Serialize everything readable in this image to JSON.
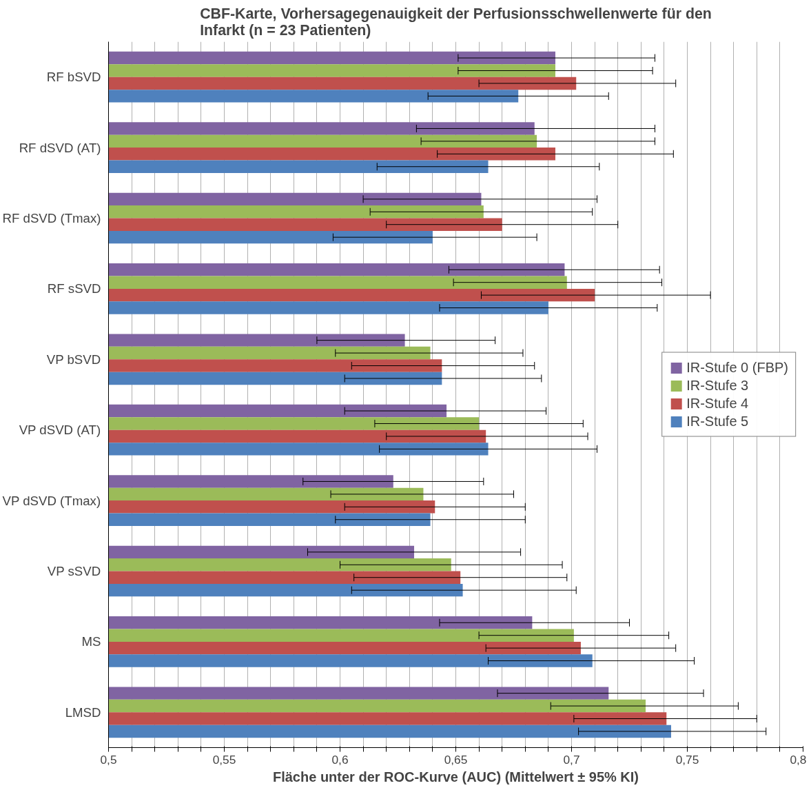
{
  "chart_data": {
    "type": "bar",
    "orientation": "horizontal",
    "title": "CBF-Karte, Vorhersagegenauigkeit der Perfusionsschwellenwerte für den\nInfarkt (n = 23 Patienten)",
    "xlabel": "Fläche unter der ROC-Kurve (AUC) (Mittelwert ± 95% KI)",
    "categories": [
      "RF bSVD",
      "RF dSVD (AT)",
      "RF dSVD (Tmax)",
      "RF sSVD",
      "VP bSVD",
      "VP dSVD (AT)",
      "VP dSVD (Tmax)",
      "VP sSVD",
      "MS",
      "LMSD"
    ],
    "series": [
      {
        "name": "IR-Stufe 0 (FBP)",
        "color": "#8064a2",
        "values": [
          0.693,
          0.684,
          0.661,
          0.697,
          0.628,
          0.646,
          0.623,
          0.632,
          0.683,
          0.716
        ],
        "errors": [
          [
            0.651,
            0.736
          ],
          [
            0.633,
            0.736
          ],
          [
            0.61,
            0.711
          ],
          [
            0.647,
            0.738
          ],
          [
            0.59,
            0.667
          ],
          [
            0.602,
            0.689
          ],
          [
            0.584,
            0.662
          ],
          [
            0.586,
            0.678
          ],
          [
            0.643,
            0.725
          ],
          [
            0.668,
            0.757
          ]
        ]
      },
      {
        "name": "IR-Stufe 3",
        "color": "#9bbb59",
        "values": [
          0.693,
          0.685,
          0.662,
          0.698,
          0.639,
          0.66,
          0.636,
          0.648,
          0.701,
          0.732
        ],
        "errors": [
          [
            0.651,
            0.735
          ],
          [
            0.635,
            0.736
          ],
          [
            0.613,
            0.709
          ],
          [
            0.649,
            0.739
          ],
          [
            0.598,
            0.679
          ],
          [
            0.615,
            0.705
          ],
          [
            0.596,
            0.675
          ],
          [
            0.6,
            0.696
          ],
          [
            0.66,
            0.742
          ],
          [
            0.691,
            0.772
          ]
        ]
      },
      {
        "name": "IR-Stufe 4",
        "color": "#c0504d",
        "values": [
          0.702,
          0.693,
          0.67,
          0.71,
          0.644,
          0.663,
          0.641,
          0.652,
          0.704,
          0.741
        ],
        "errors": [
          [
            0.66,
            0.745
          ],
          [
            0.642,
            0.744
          ],
          [
            0.62,
            0.72
          ],
          [
            0.661,
            0.76
          ],
          [
            0.605,
            0.684
          ],
          [
            0.62,
            0.707
          ],
          [
            0.602,
            0.68
          ],
          [
            0.606,
            0.698
          ],
          [
            0.663,
            0.745
          ],
          [
            0.701,
            0.78
          ]
        ]
      },
      {
        "name": "IR-Stufe 5",
        "color": "#4f81bd",
        "values": [
          0.677,
          0.664,
          0.64,
          0.69,
          0.644,
          0.664,
          0.639,
          0.653,
          0.709,
          0.743
        ],
        "errors": [
          [
            0.638,
            0.716
          ],
          [
            0.616,
            0.712
          ],
          [
            0.597,
            0.685
          ],
          [
            0.643,
            0.737
          ],
          [
            0.602,
            0.687
          ],
          [
            0.617,
            0.711
          ],
          [
            0.598,
            0.68
          ],
          [
            0.605,
            0.702
          ],
          [
            0.664,
            0.753
          ],
          [
            0.703,
            0.784
          ]
        ]
      }
    ],
    "xlim": [
      0.5,
      0.8
    ],
    "xticks": [
      {
        "value": 0.5,
        "label": "0,5"
      },
      {
        "value": 0.51,
        "label": null
      },
      {
        "value": 0.52,
        "label": null
      },
      {
        "value": 0.53,
        "label": null
      },
      {
        "value": 0.54,
        "label": null
      },
      {
        "value": 0.55,
        "label": "0,55"
      },
      {
        "value": 0.56,
        "label": null
      },
      {
        "value": 0.57,
        "label": null
      },
      {
        "value": 0.58,
        "label": null
      },
      {
        "value": 0.59,
        "label": null
      },
      {
        "value": 0.6,
        "label": "0,6"
      },
      {
        "value": 0.61,
        "label": null
      },
      {
        "value": 0.62,
        "label": null
      },
      {
        "value": 0.63,
        "label": null
      },
      {
        "value": 0.64,
        "label": null
      },
      {
        "value": 0.65,
        "label": "0,65"
      },
      {
        "value": 0.66,
        "label": null
      },
      {
        "value": 0.67,
        "label": null
      },
      {
        "value": 0.68,
        "label": null
      },
      {
        "value": 0.69,
        "label": null
      },
      {
        "value": 0.7,
        "label": "0,7"
      },
      {
        "value": 0.71,
        "label": null
      },
      {
        "value": 0.72,
        "label": null
      },
      {
        "value": 0.73,
        "label": null
      },
      {
        "value": 0.74,
        "label": null
      },
      {
        "value": 0.75,
        "label": "0,75"
      },
      {
        "value": 0.76,
        "label": null
      },
      {
        "value": 0.77,
        "label": null
      },
      {
        "value": 0.78,
        "label": null
      },
      {
        "value": 0.79,
        "label": null
      },
      {
        "value": 0.8,
        "label": "0,8"
      }
    ],
    "grid": "x",
    "legend": "right"
  }
}
